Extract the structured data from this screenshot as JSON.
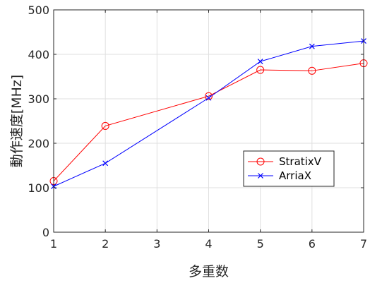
{
  "chart_data": {
    "type": "line",
    "xlabel": "多重数",
    "ylabel": "動作速度[MHz]",
    "xlim": [
      1,
      7
    ],
    "ylim": [
      0,
      500
    ],
    "xticks": [
      1,
      2,
      3,
      4,
      5,
      6,
      7
    ],
    "yticks": [
      0,
      100,
      200,
      300,
      400,
      500
    ],
    "grid": true,
    "legend_position": "lower-right",
    "series": [
      {
        "name": "StratixV",
        "color": "#ff0000",
        "marker": "circle",
        "x": [
          1,
          2,
          4,
          5,
          6,
          7
        ],
        "y": [
          115,
          239,
          306,
          365,
          363,
          380
        ]
      },
      {
        "name": "ArriaX",
        "color": "#0000ff",
        "marker": "x",
        "x": [
          1,
          2,
          4,
          5,
          6,
          7
        ],
        "y": [
          103,
          155,
          302,
          384,
          418,
          430
        ]
      }
    ]
  }
}
